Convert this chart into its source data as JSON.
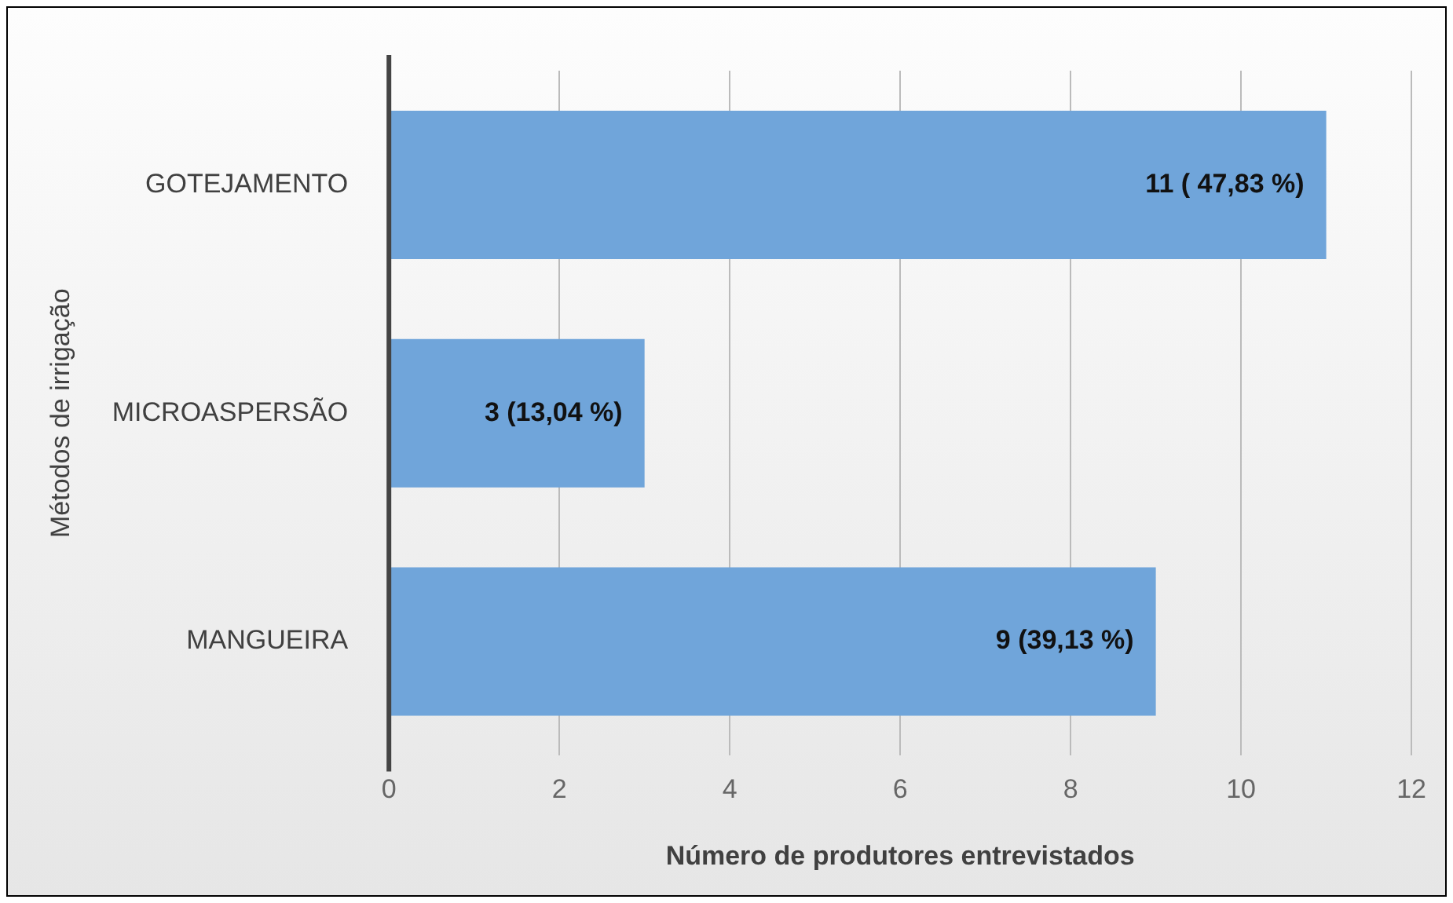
{
  "chart_data": {
    "type": "bar",
    "orientation": "horizontal",
    "categories": [
      "GOTEJAMENTO",
      "MICROASPERSÃO",
      "MANGUEIRA"
    ],
    "values": [
      11,
      3,
      9
    ],
    "color": "#70a5da",
    "value_labels": [
      "11 ( 47,83 %)",
      "3 (13,04 %)",
      "9 (39,13 %)"
    ],
    "xlabel": "Número de produtores entrevistados",
    "ylabel": "Métodos de irrigação",
    "xlim": [
      0,
      12
    ],
    "xticks": [
      0,
      2,
      4,
      6,
      8,
      10,
      12
    ],
    "grid": "x",
    "legend": false
  }
}
